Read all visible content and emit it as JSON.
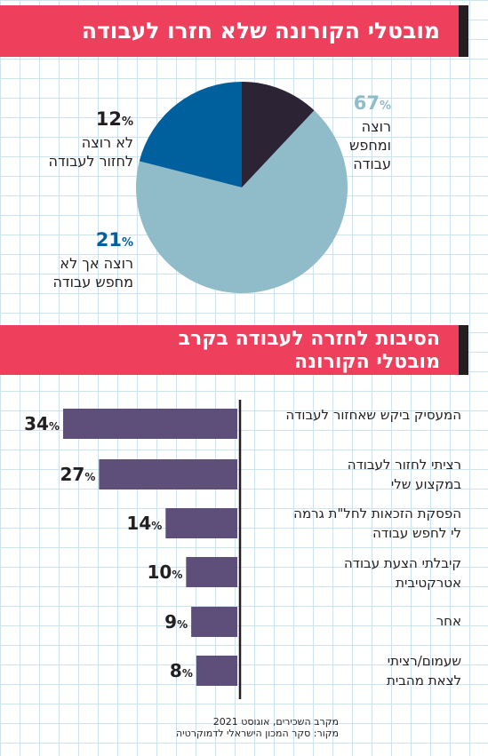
{
  "banner1": {
    "title": "מובטלי הקורונה שלא חזרו לעבודה"
  },
  "banner2": {
    "line1": "הסיבות לחזרה לעבודה בקרב",
    "line2": "מובטלי הקורונה"
  },
  "pie_labels": [
    {
      "pct": "67",
      "sign": "%",
      "line1": "רוצה ומחפש",
      "line2": "עבודה"
    },
    {
      "pct": "12",
      "sign": "%",
      "line1": "לא רוצה",
      "line2": "לחזור לעבודה"
    },
    {
      "pct": "21",
      "sign": "%",
      "line1": "רוצה אך לא",
      "line2": "מחפש עבודה"
    }
  ],
  "bar_labels": [
    {
      "line1": "המעסיק ביקש שאחזור לעבודה",
      "line2": ""
    },
    {
      "line1": "רציתי לחזור לעבודה",
      "line2": "במקצוע שלי"
    },
    {
      "line1": "הפסקת הזכאות לחל\"ת גרמה",
      "line2": "לי לחפש עבודה"
    },
    {
      "line1": "קיבלתי הצעת עבודה",
      "line2": "אטרקטיבית"
    },
    {
      "line1": "אחר",
      "line2": ""
    },
    {
      "line1": "שעמום/רציתי",
      "line2": "לצאת מהבית"
    }
  ],
  "bar_values_text": [
    {
      "num": "34",
      "sign": "%"
    },
    {
      "num": "27",
      "sign": "%"
    },
    {
      "num": "14",
      "sign": "%"
    },
    {
      "num": "10",
      "sign": "%"
    },
    {
      "num": "9",
      "sign": "%"
    },
    {
      "num": "8",
      "sign": "%"
    }
  ],
  "footnote": {
    "line1": "מקרב השכירים, אוגוסט 2021",
    "line2": "מקור: סקר המכון הישראלי לדמוקרטיה"
  },
  "colors": {
    "banner": "#ee3f5d",
    "pie_light": "#8fbcc8",
    "pie_dark": "#2c2434",
    "pie_blue": "#00609e",
    "bar": "#5e4e7a",
    "pct_blue": "#00609e",
    "pct_light": "#8fbcc8"
  },
  "chart_data": [
    {
      "type": "pie",
      "title": "מובטלי הקורונה שלא חזרו לעבודה",
      "slices": [
        {
          "label": "רוצה ומחפש עבודה",
          "value": 67
        },
        {
          "label": "רוצה אך לא מחפש עבודה",
          "value": 21
        },
        {
          "label": "לא רוצה לחזור לעבודה",
          "value": 12
        }
      ]
    },
    {
      "type": "bar",
      "orientation": "horizontal",
      "title": "הסיבות לחזרה לעבודה בקרב מובטלי הקורונה",
      "categories": [
        "המעסיק ביקש שאחזור לעבודה",
        "רציתי לחזור לעבודה במקצוע שלי",
        "הפסקת הזכאות לחל\"ת גרמה לי לחפש עבודה",
        "קיבלתי הצעת עבודה אטרקטיבית",
        "אחר",
        "שעמום/רציתי לצאת מהבית"
      ],
      "values": [
        34,
        27,
        14,
        10,
        9,
        8
      ]
    }
  ]
}
